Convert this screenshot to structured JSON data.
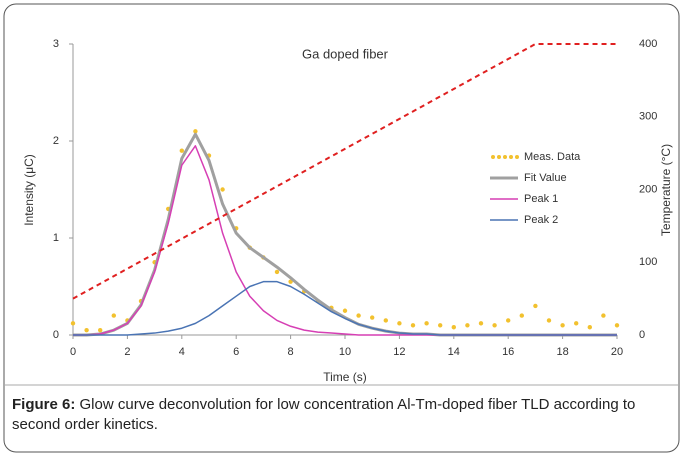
{
  "chart_data": {
    "type": "line",
    "title": "Ga doped fiber",
    "xlabel": "Time (s)",
    "ylabel": "Intensity (μC)",
    "y2label": "Temperature (°C)",
    "xlim": [
      0,
      20
    ],
    "xticks": [
      0,
      2,
      4,
      6,
      8,
      10,
      12,
      14,
      16,
      18,
      20
    ],
    "ylim": [
      0,
      3
    ],
    "yticks": [
      0,
      1,
      2,
      3
    ],
    "y2lim": [
      0,
      400
    ],
    "y2ticks": [
      0,
      100,
      200,
      300,
      400
    ],
    "legend": "right",
    "x": [
      0,
      0.5,
      1,
      1.5,
      2,
      2.5,
      3,
      3.5,
      4,
      4.5,
      5,
      5.5,
      6,
      6.5,
      7,
      7.5,
      8,
      8.5,
      9,
      9.5,
      10,
      10.5,
      11,
      11.5,
      12,
      12.5,
      13,
      13.5,
      14,
      14.5,
      15,
      15.5,
      16,
      16.5,
      17,
      17.5,
      18,
      18.5,
      19,
      19.5,
      20
    ],
    "series": [
      {
        "name": "Meas. Data",
        "color": "#f2c12e",
        "style": "dots",
        "values": [
          0.12,
          0.05,
          0.05,
          0.2,
          0.15,
          0.35,
          0.75,
          1.3,
          1.9,
          2.1,
          1.85,
          1.5,
          1.1,
          0.9,
          0.8,
          0.65,
          0.55,
          0.45,
          0.35,
          0.28,
          0.25,
          0.2,
          0.18,
          0.15,
          0.12,
          0.1,
          0.12,
          0.1,
          0.08,
          0.1,
          0.12,
          0.1,
          0.15,
          0.2,
          0.3,
          0.15,
          0.1,
          0.12,
          0.08,
          0.2,
          0.1
        ]
      },
      {
        "name": "Fit Value",
        "color": "#a0a0a0",
        "style": "thick",
        "values": [
          0,
          0,
          0.01,
          0.05,
          0.12,
          0.31,
          0.67,
          1.19,
          1.82,
          2.07,
          1.8,
          1.35,
          1.05,
          0.9,
          0.8,
          0.7,
          0.59,
          0.47,
          0.36,
          0.26,
          0.18,
          0.11,
          0.07,
          0.04,
          0.02,
          0.01,
          0.01,
          0,
          0,
          0,
          0,
          0,
          0,
          0,
          0,
          0,
          0,
          0,
          0,
          0,
          0
        ]
      },
      {
        "name": "Peak 1",
        "color": "#d63fb4",
        "style": "solid",
        "values": [
          0,
          0,
          0.01,
          0.05,
          0.12,
          0.3,
          0.65,
          1.15,
          1.75,
          1.95,
          1.6,
          1.05,
          0.65,
          0.4,
          0.25,
          0.15,
          0.09,
          0.05,
          0.03,
          0.02,
          0.01,
          0,
          0,
          0,
          0,
          0,
          0,
          0,
          0,
          0,
          0,
          0,
          0,
          0,
          0,
          0,
          0,
          0,
          0,
          0,
          0
        ]
      },
      {
        "name": "Peak 2",
        "color": "#4a74b4",
        "style": "solid",
        "values": [
          0,
          0,
          0,
          0,
          0,
          0.01,
          0.02,
          0.04,
          0.07,
          0.12,
          0.2,
          0.3,
          0.4,
          0.5,
          0.55,
          0.55,
          0.5,
          0.42,
          0.33,
          0.24,
          0.17,
          0.11,
          0.07,
          0.04,
          0.02,
          0.01,
          0.01,
          0,
          0,
          0,
          0,
          0,
          0,
          0,
          0,
          0,
          0,
          0,
          0,
          0,
          0
        ]
      },
      {
        "color": "#e02020",
        "style": "dashed",
        "axis": "y2",
        "x": [
          0,
          17,
          20
        ],
        "values": [
          50,
          400,
          400
        ]
      }
    ],
    "caption_label": "Figure 6:",
    "caption_text": " Glow curve deconvolution for low concentration Al-Tm-doped fiber TLD according to second order kinetics."
  }
}
